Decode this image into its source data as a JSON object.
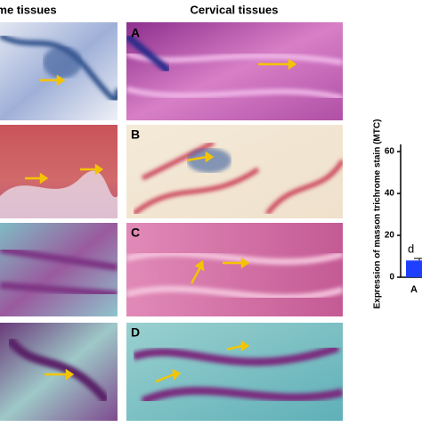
{
  "headers": [
    "me tissues",
    "Cervical tissues"
  ],
  "panels": [
    {
      "label": "A"
    },
    {
      "label": "B"
    },
    {
      "label": "C"
    },
    {
      "label": "D"
    }
  ],
  "chart_data": {
    "type": "bar",
    "y_label": "Expression of masson trichrome stain (MTC)",
    "categories": [
      "A"
    ],
    "values": [
      8
    ],
    "errors": [
      1
    ],
    "significance_labels": [
      "d"
    ],
    "color": "#1f3fff",
    "ylim": [
      0,
      60
    ],
    "yticks": [
      0,
      20,
      40,
      60
    ]
  }
}
